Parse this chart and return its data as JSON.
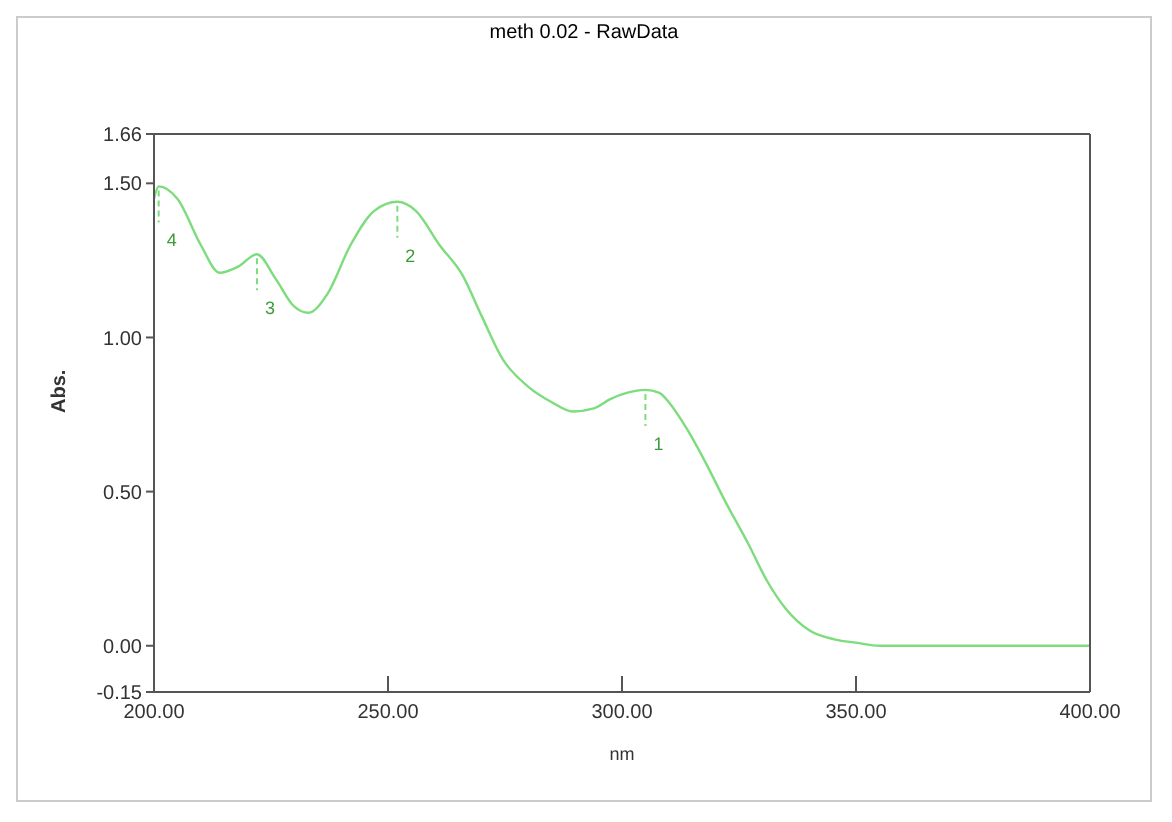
{
  "chart_data": {
    "type": "line",
    "title": "meth 0.02 - RawData",
    "xlabel": "nm",
    "ylabel": "Abs.",
    "x": [
      200,
      201,
      205,
      210,
      214,
      218,
      222,
      226,
      230,
      233,
      237,
      242,
      247,
      252,
      256,
      261,
      266,
      270,
      274.5,
      280,
      285,
      289.5,
      294,
      297.5,
      301,
      305,
      308,
      310,
      314,
      318,
      322,
      327,
      331,
      335,
      340,
      345.6,
      350,
      355,
      370,
      385,
      400
    ],
    "series": [
      {
        "color": "#7ddc7d",
        "values": [
          1.45,
          1.49,
          1.45,
          1.3,
          1.21,
          1.23,
          1.27,
          1.19,
          1.1,
          1.08,
          1.14,
          1.3,
          1.41,
          1.44,
          1.41,
          1.3,
          1.2,
          1.07,
          0.93,
          0.84,
          0.79,
          0.76,
          0.77,
          0.8,
          0.82,
          0.83,
          0.82,
          0.79,
          0.7,
          0.59,
          0.47,
          0.33,
          0.21,
          0.12,
          0.05,
          0.02,
          0.01,
          0,
          0,
          0,
          0
        ]
      }
    ],
    "annotations": [
      {
        "text": "4",
        "x": 201,
        "y": 1.49
      },
      {
        "text": "3",
        "x": 222,
        "y": 1.27
      },
      {
        "text": "2",
        "x": 252,
        "y": 1.44
      },
      {
        "text": "1",
        "x": 305,
        "y": 0.83
      }
    ],
    "xlim": [
      200,
      400
    ],
    "xticks": [
      {
        "value": 200,
        "label": "200.00"
      },
      {
        "value": 250,
        "label": "250.00"
      },
      {
        "value": 300,
        "label": "300.00"
      },
      {
        "value": 350,
        "label": "350.00"
      },
      {
        "value": 400,
        "label": "400.00"
      }
    ],
    "ylim": [
      -0.15,
      1.66
    ],
    "yticks": [
      {
        "value": -0.15,
        "label": "-0.15"
      },
      {
        "value": 0,
        "label": "0.00"
      },
      {
        "value": 0.5,
        "label": "0.50"
      },
      {
        "value": 1,
        "label": "1.00"
      },
      {
        "value": 1.5,
        "label": "1.50"
      },
      {
        "value": 1.66,
        "label": "1.66"
      }
    ],
    "grid": false,
    "marker": "none",
    "line_style": "solid",
    "legend": false
  }
}
